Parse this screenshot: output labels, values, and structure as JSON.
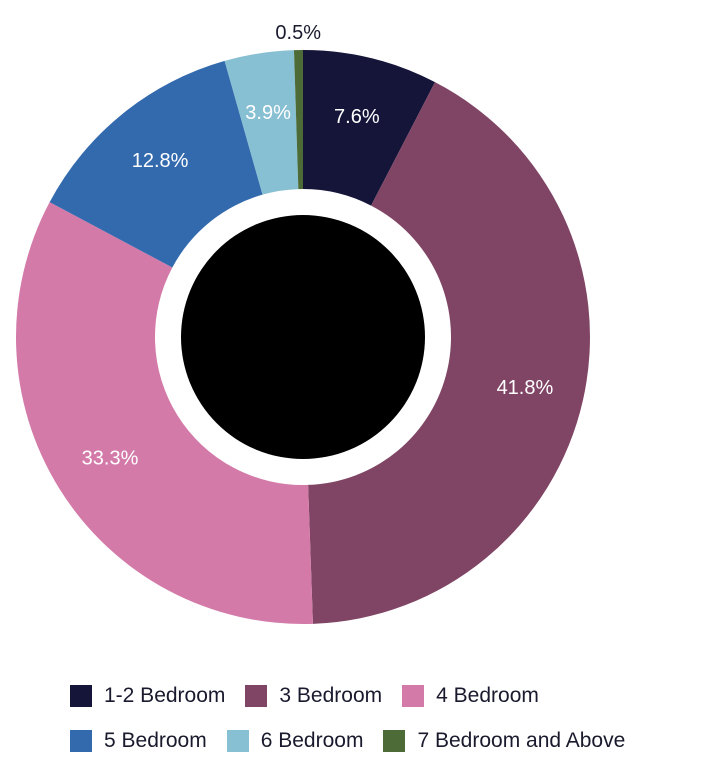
{
  "chart_data": {
    "type": "pie",
    "donut": true,
    "title": "",
    "legend_position": "bottom",
    "slices": [
      {
        "label": "1-2 Bedroom",
        "value": 7.6,
        "display": "7.6%",
        "color": "#15153a"
      },
      {
        "label": "3 Bedroom",
        "value": 41.8,
        "display": "41.8%",
        "color": "#804565"
      },
      {
        "label": "4 Bedroom",
        "value": 33.3,
        "display": "33.3%",
        "color": "#d37aa9"
      },
      {
        "label": "5 Bedroom",
        "value": 12.8,
        "display": "12.8%",
        "color": "#336aae"
      },
      {
        "label": "6 Bedroom",
        "value": 3.9,
        "display": "3.9%",
        "color": "#87bfd3"
      },
      {
        "label": "7 Bedroom and Above",
        "value": 0.5,
        "display": "0.5%",
        "color": "#4d6b37"
      }
    ],
    "center_fill": "#000000"
  }
}
